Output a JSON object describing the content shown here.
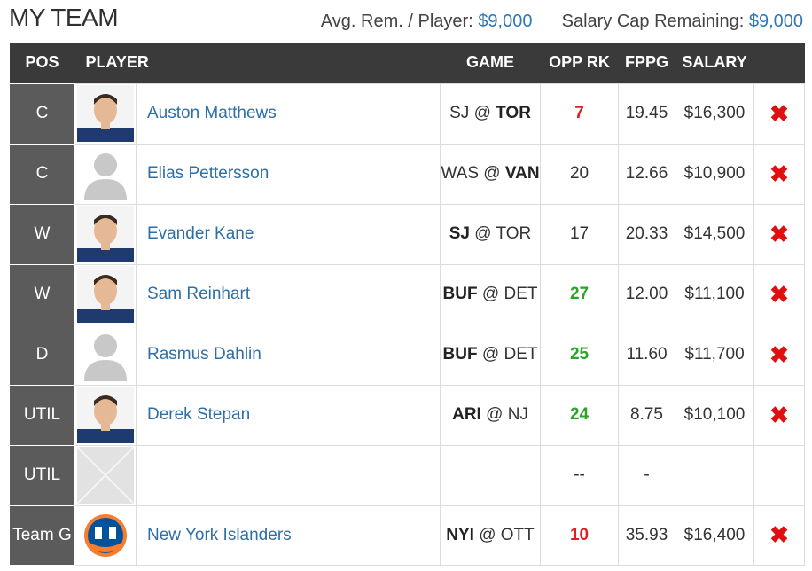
{
  "header": {
    "title": "MY TEAM",
    "avg_label": "Avg. Rem. / Player:",
    "avg_value": "$9,000",
    "cap_label": "Salary Cap Remaining:",
    "cap_value": "$9,000"
  },
  "columns": {
    "pos": "POS",
    "player": "PLAYER",
    "game": "GAME",
    "opp_rk": "OPP RK",
    "fppg": "FPPG",
    "salary": "SALARY"
  },
  "rows": [
    {
      "pos": "C",
      "name": "Auston Matthews",
      "game_away": "SJ",
      "game_sep": " @ ",
      "game_home": "TOR",
      "bold": "home",
      "opp_rk": "7",
      "rk_color": "red",
      "fppg": "19.45",
      "salary": "$16,300",
      "photo": "player-photo",
      "remove": "✖"
    },
    {
      "pos": "C",
      "name": "Elias Pettersson",
      "game_away": "WAS",
      "game_sep": " @ ",
      "game_home": "VAN",
      "bold": "home",
      "opp_rk": "20",
      "rk_color": "plain",
      "fppg": "12.66",
      "salary": "$10,900",
      "photo": "placeholder-silhouette",
      "remove": "✖"
    },
    {
      "pos": "W",
      "name": "Evander Kane",
      "game_away": "SJ",
      "game_sep": " @ ",
      "game_home": "TOR",
      "bold": "away",
      "opp_rk": "17",
      "rk_color": "plain",
      "fppg": "20.33",
      "salary": "$14,500",
      "photo": "player-photo",
      "remove": "✖"
    },
    {
      "pos": "W",
      "name": "Sam Reinhart",
      "game_away": "BUF",
      "game_sep": " @ ",
      "game_home": "DET",
      "bold": "away",
      "opp_rk": "27",
      "rk_color": "green",
      "fppg": "12.00",
      "salary": "$11,100",
      "photo": "player-photo",
      "remove": "✖"
    },
    {
      "pos": "D",
      "name": "Rasmus Dahlin",
      "game_away": "BUF",
      "game_sep": " @ ",
      "game_home": "DET",
      "bold": "away",
      "opp_rk": "25",
      "rk_color": "green",
      "fppg": "11.60",
      "salary": "$11,700",
      "photo": "placeholder-silhouette",
      "remove": "✖"
    },
    {
      "pos": "UTIL",
      "name": "Derek Stepan",
      "game_away": "ARI",
      "game_sep": " @ ",
      "game_home": "NJ",
      "bold": "away",
      "opp_rk": "24",
      "rk_color": "green",
      "fppg": "8.75",
      "salary": "$10,100",
      "photo": "player-photo",
      "remove": "✖"
    },
    {
      "pos": "UTIL",
      "name": "",
      "game_away": "",
      "game_sep": "",
      "game_home": "",
      "bold": "none",
      "opp_rk": "--",
      "rk_color": "plain",
      "fppg": "-",
      "salary": "",
      "photo": "empty-slot",
      "remove": ""
    },
    {
      "pos": "Team G",
      "name": "New York Islanders",
      "game_away": "NYI",
      "game_sep": " @ ",
      "game_home": "OTT",
      "bold": "away",
      "opp_rk": "10",
      "rk_color": "red",
      "fppg": "35.93",
      "salary": "$16,400",
      "photo": "team-logo",
      "remove": "✖"
    }
  ],
  "colors": {
    "link": "#2e6fa8",
    "accent": "#2e78b7",
    "rank_red": "#e02020",
    "rank_green": "#2aa52a",
    "remove": "#e01010",
    "header_bg": "#3a3a3a",
    "pos_bg": "#5b5b5b"
  }
}
